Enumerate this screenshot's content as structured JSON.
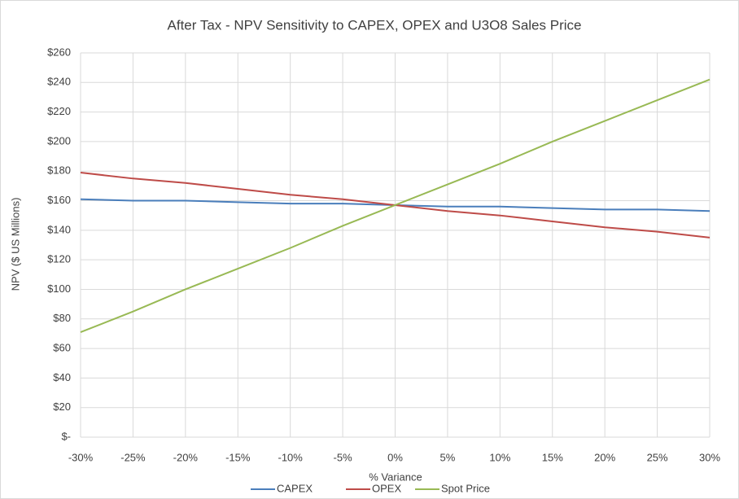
{
  "chart_data": {
    "type": "line",
    "title": "After Tax - NPV Sensitivity to CAPEX, OPEX and U3O8 Sales Price",
    "x_label": "% Variance",
    "y_label": "NPV ($ US Millions)",
    "categories": [
      "-30%",
      "-25%",
      "-20%",
      "-15%",
      "-10%",
      "-5%",
      "0%",
      "5%",
      "10%",
      "15%",
      "20%",
      "25%",
      "30%"
    ],
    "series": [
      {
        "name": "CAPEX",
        "color": "#4a7ebb",
        "values": [
          161,
          160,
          160,
          159,
          158,
          158,
          157,
          156,
          156,
          155,
          154,
          154,
          153
        ]
      },
      {
        "name": "OPEX",
        "color": "#be4b48",
        "values": [
          179,
          175,
          172,
          168,
          164,
          161,
          157,
          153,
          150,
          146,
          142,
          139,
          135
        ]
      },
      {
        "name": "Spot Price",
        "color": "#98b954",
        "values": [
          71,
          85,
          100,
          114,
          128,
          143,
          157,
          171,
          185,
          200,
          214,
          228,
          242
        ]
      }
    ],
    "ylim": [
      0,
      260
    ],
    "yticks": [
      {
        "value": 0,
        "label": "$-"
      },
      {
        "value": 20,
        "label": "$20"
      },
      {
        "value": 40,
        "label": "$40"
      },
      {
        "value": 60,
        "label": "$60"
      },
      {
        "value": 80,
        "label": "$80"
      },
      {
        "value": 100,
        "label": "$100"
      },
      {
        "value": 120,
        "label": "$120"
      },
      {
        "value": 140,
        "label": "$140"
      },
      {
        "value": 160,
        "label": "$160"
      },
      {
        "value": 180,
        "label": "$180"
      },
      {
        "value": 200,
        "label": "$200"
      },
      {
        "value": 220,
        "label": "$220"
      },
      {
        "value": 240,
        "label": "$240"
      },
      {
        "value": 260,
        "label": "$260"
      }
    ],
    "grid": true,
    "legend": "bottom"
  }
}
